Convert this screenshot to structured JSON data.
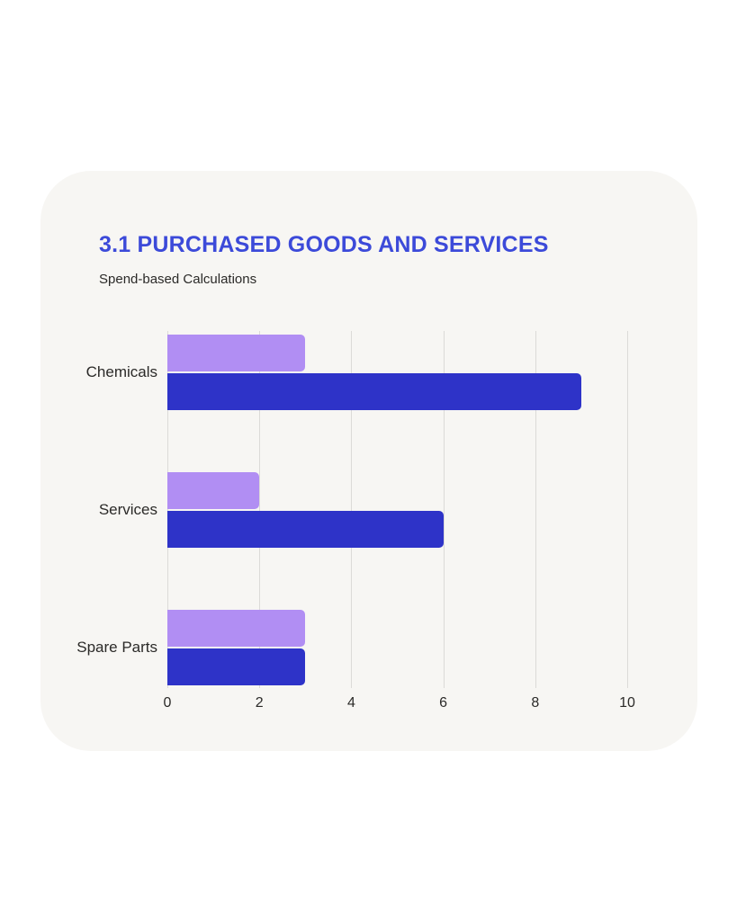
{
  "colors": {
    "title": "#3c4ad9",
    "text": "#2b2a28",
    "card_background": "#f7f6f3",
    "page_background": "#ffffff",
    "gridline": "#dcdbd8"
  },
  "chart_data": {
    "type": "bar",
    "orientation": "horizontal",
    "title": "3.1 PURCHASED GOODS AND SERVICES",
    "subtitle": "Spend-based Calculations",
    "categories": [
      "Chemicals",
      "Services",
      "Spare Parts"
    ],
    "series": [
      {
        "name": "light-purple-series",
        "color": "#b18ef3",
        "values": [
          3,
          2,
          3
        ]
      },
      {
        "name": "dark-blue-series",
        "color": "#2e33c8",
        "values": [
          9,
          6,
          3
        ]
      }
    ],
    "x_ticks": [
      0,
      2,
      4,
      6,
      8,
      10
    ],
    "xlim": [
      0,
      10
    ],
    "grid": true,
    "legend": false
  }
}
